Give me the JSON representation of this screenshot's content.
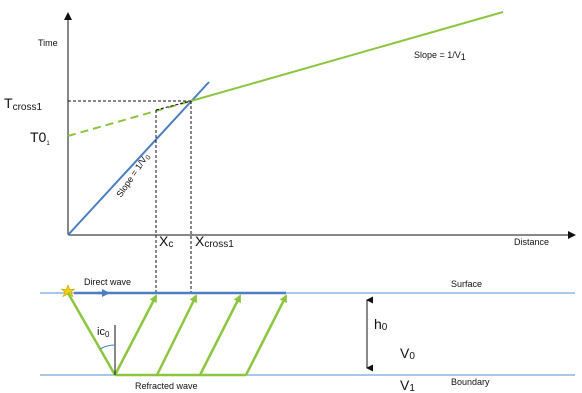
{
  "labels": {
    "y_axis": "Time",
    "x_axis": "Distance",
    "slope_v1": "Slope = 1/V",
    "slope_v1_sub": "1",
    "slope_v0": "Slope = 1/V",
    "slope_v0_sub": "0",
    "t_cross": "T",
    "t_cross_sub": "cross1",
    "t0": "T0",
    "t0_sub": "1",
    "xc": "X",
    "xc_sub": "c",
    "x_cross": "X",
    "x_cross_sub": "cross1",
    "direct_wave": "Direct wave",
    "surface": "Surface",
    "ic": "ic",
    "ic_sub": "0",
    "h": "h",
    "h_sub": "0",
    "v0": "V",
    "v0_sub": "0",
    "refracted_wave": "Refracted wave",
    "boundary": "Boundary",
    "v1": "V",
    "v1_sub": "1"
  },
  "colors": {
    "direct_wave": "#4a7fc1",
    "refracted_wave": "#8cc63f",
    "layer_line": "#8ab6e0",
    "axis": "#111111",
    "source": "#f5d000"
  }
}
